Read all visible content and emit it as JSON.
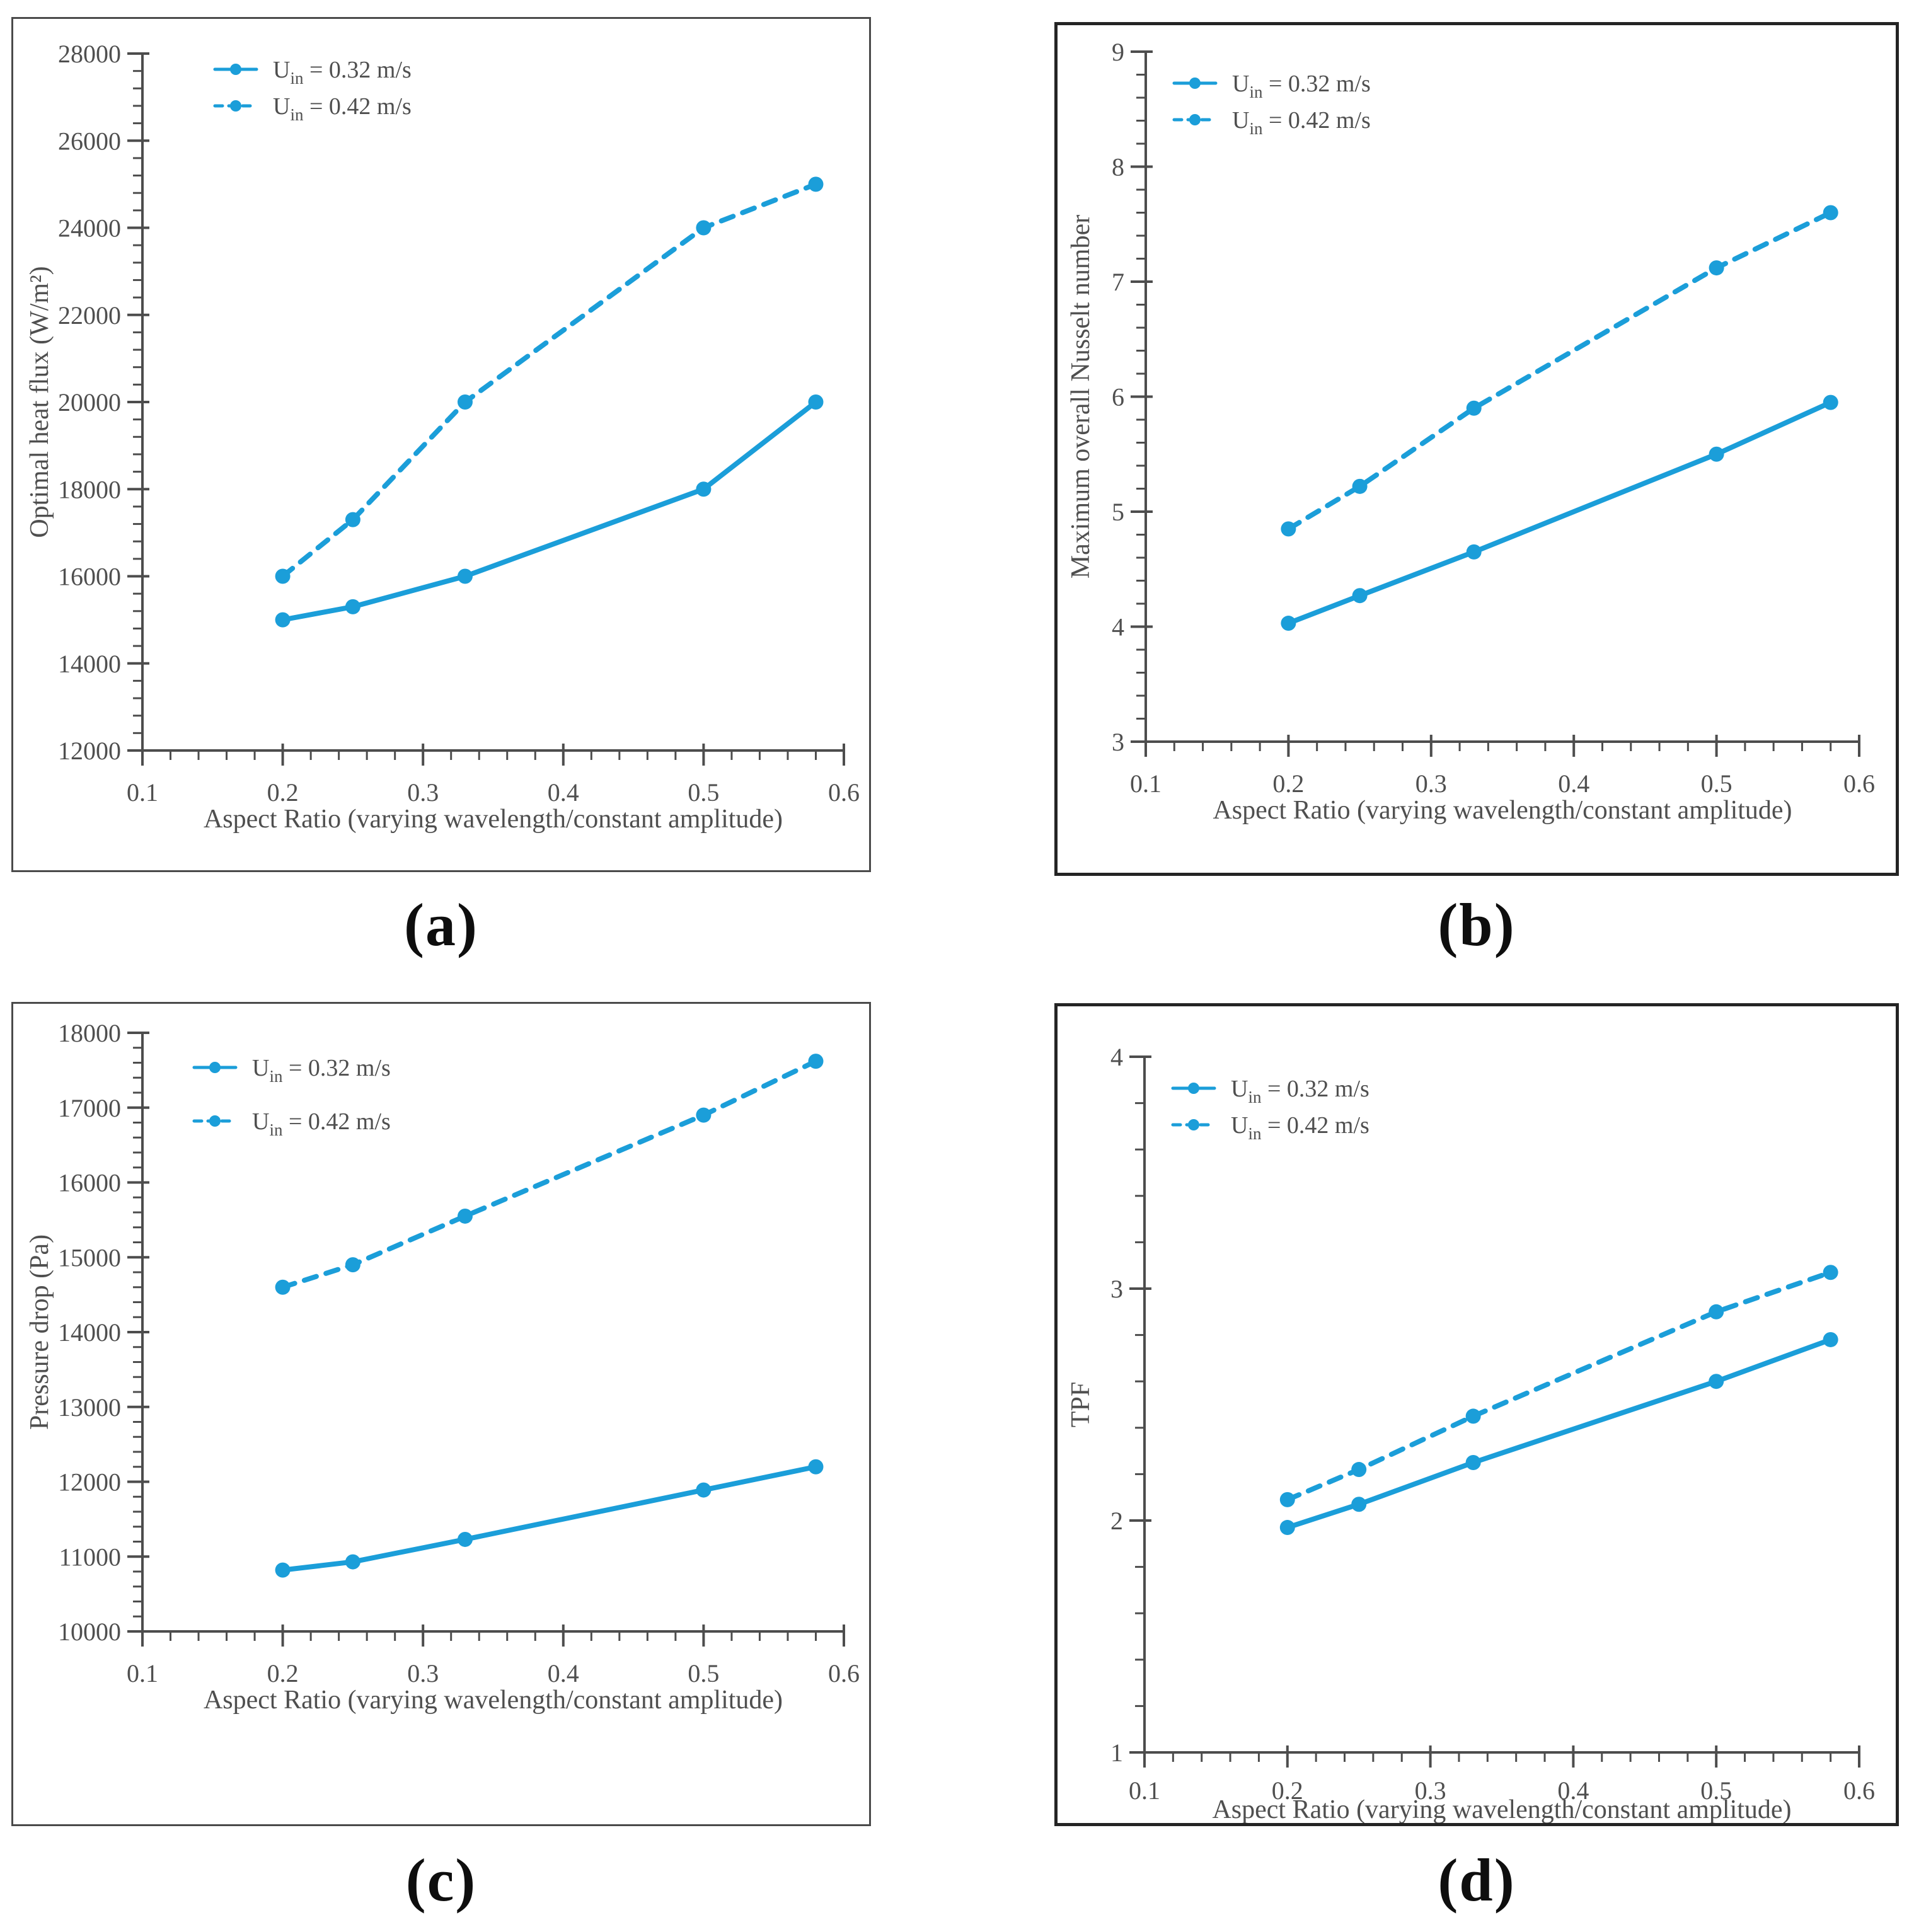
{
  "figure": {
    "accent_color": "#1b9ed9",
    "text_color": "#4f4f4f",
    "axis_color": "#4d4d4d",
    "background": "#ffffff"
  },
  "legend": {
    "items": [
      {
        "prefix": "U",
        "sub": "in",
        "rest": " = 0.32 m/s",
        "style": "solid"
      },
      {
        "prefix": "U",
        "sub": "in",
        "rest": " = 0.42 m/s",
        "style": "dashed"
      }
    ]
  },
  "chart_data": [
    {
      "id": "a",
      "type": "line",
      "caption": "(a)",
      "xlabel": "Aspect Ratio (varying wavelength/constant amplitude)",
      "ylabel": "Optimal heat flux (W/m²)",
      "xlim": [
        0.1,
        0.6
      ],
      "ylim": [
        12000,
        28000
      ],
      "xticks": [
        0.1,
        0.2,
        0.3,
        0.4,
        0.5,
        0.6
      ],
      "xtick_labels": [
        "0.1",
        "0.2",
        "0.3",
        "0.4",
        "0.5",
        "0.6"
      ],
      "yticks": [
        12000,
        14000,
        16000,
        18000,
        20000,
        22000,
        24000,
        26000,
        28000
      ],
      "ytick_labels": [
        "12000",
        "14000",
        "16000",
        "18000",
        "20000",
        "22000",
        "24000",
        "26000",
        "28000"
      ],
      "x_minor_per_major": 4,
      "y_minor_per_major": 4,
      "grid": false,
      "legend_position": "top-left",
      "x": [
        0.2,
        0.25,
        0.33,
        0.5,
        0.58
      ],
      "series": [
        {
          "name": "Uin = 0.32 m/s",
          "style": "solid",
          "values": [
            15000,
            15300,
            16000,
            18000,
            20000
          ]
        },
        {
          "name": "Uin = 0.42 m/s",
          "style": "dashed",
          "values": [
            16000,
            17300,
            20000,
            24000,
            25000
          ]
        }
      ]
    },
    {
      "id": "b",
      "type": "line",
      "caption": "(b)",
      "xlabel": "Aspect Ratio (varying wavelength/constant amplitude)",
      "ylabel": "Maximum overall Nusselt number",
      "xlim": [
        0.1,
        0.6
      ],
      "ylim": [
        3,
        9
      ],
      "xticks": [
        0.1,
        0.2,
        0.3,
        0.4,
        0.5,
        0.6
      ],
      "xtick_labels": [
        "0.1",
        "0.2",
        "0.3",
        "0.4",
        "0.5",
        "0.6"
      ],
      "yticks": [
        3,
        4,
        5,
        6,
        7,
        8,
        9
      ],
      "ytick_labels": [
        "3",
        "4",
        "5",
        "6",
        "7",
        "8",
        "9"
      ],
      "x_minor_per_major": 4,
      "y_minor_per_major": 4,
      "grid": false,
      "legend_position": "top-left",
      "x": [
        0.2,
        0.25,
        0.33,
        0.5,
        0.58
      ],
      "series": [
        {
          "name": "Uin = 0.32 m/s",
          "style": "solid",
          "values": [
            4.03,
            4.27,
            4.65,
            5.5,
            5.95
          ]
        },
        {
          "name": "Uin = 0.42 m/s",
          "style": "dashed",
          "values": [
            4.85,
            5.22,
            5.9,
            7.12,
            7.6
          ]
        }
      ]
    },
    {
      "id": "c",
      "type": "line",
      "caption": "(c)",
      "xlabel": "Aspect Ratio (varying wavelength/constant amplitude)",
      "ylabel": "Pressure drop (Pa)",
      "xlim": [
        0.1,
        0.6
      ],
      "ylim": [
        10000,
        18000
      ],
      "xticks": [
        0.1,
        0.2,
        0.3,
        0.4,
        0.5,
        0.6
      ],
      "xtick_labels": [
        "0.1",
        "0.2",
        "0.3",
        "0.4",
        "0.5",
        "0.6"
      ],
      "yticks": [
        10000,
        11000,
        12000,
        13000,
        14000,
        15000,
        16000,
        17000,
        18000
      ],
      "ytick_labels": [
        "10000",
        "11000",
        "12000",
        "13000",
        "14000",
        "15000",
        "16000",
        "17000",
        "18000"
      ],
      "x_minor_per_major": 4,
      "y_minor_per_major": 4,
      "grid": false,
      "legend_position": "top-left",
      "x": [
        0.2,
        0.25,
        0.33,
        0.5,
        0.58
      ],
      "series": [
        {
          "name": "Uin = 0.32 m/s",
          "style": "solid",
          "values": [
            10820,
            10930,
            11230,
            11890,
            12200
          ]
        },
        {
          "name": "Uin = 0.42 m/s",
          "style": "dashed",
          "values": [
            14600,
            14900,
            15550,
            16900,
            17620
          ]
        }
      ]
    },
    {
      "id": "d",
      "type": "line",
      "caption": "(d)",
      "xlabel": "Aspect Ratio (varying wavelength/constant amplitude)",
      "ylabel": "TPF",
      "xlim": [
        0.1,
        0.6
      ],
      "ylim": [
        1,
        4
      ],
      "xticks": [
        0.1,
        0.2,
        0.3,
        0.4,
        0.5,
        0.6
      ],
      "xtick_labels": [
        "0.1",
        "0.2",
        "0.3",
        "0.4",
        "0.5",
        "0.6"
      ],
      "yticks": [
        1,
        2,
        3,
        4
      ],
      "ytick_labels": [
        "1",
        "2",
        "3",
        "4"
      ],
      "x_minor_per_major": 4,
      "y_minor_per_major": 4,
      "grid": false,
      "legend_position": "top-left",
      "x": [
        0.2,
        0.25,
        0.33,
        0.5,
        0.58
      ],
      "series": [
        {
          "name": "Uin = 0.32 m/s",
          "style": "solid",
          "values": [
            1.97,
            2.07,
            2.25,
            2.6,
            2.78
          ]
        },
        {
          "name": "Uin = 0.42 m/s",
          "style": "dashed",
          "values": [
            2.09,
            2.22,
            2.45,
            2.9,
            3.07
          ]
        }
      ]
    }
  ]
}
